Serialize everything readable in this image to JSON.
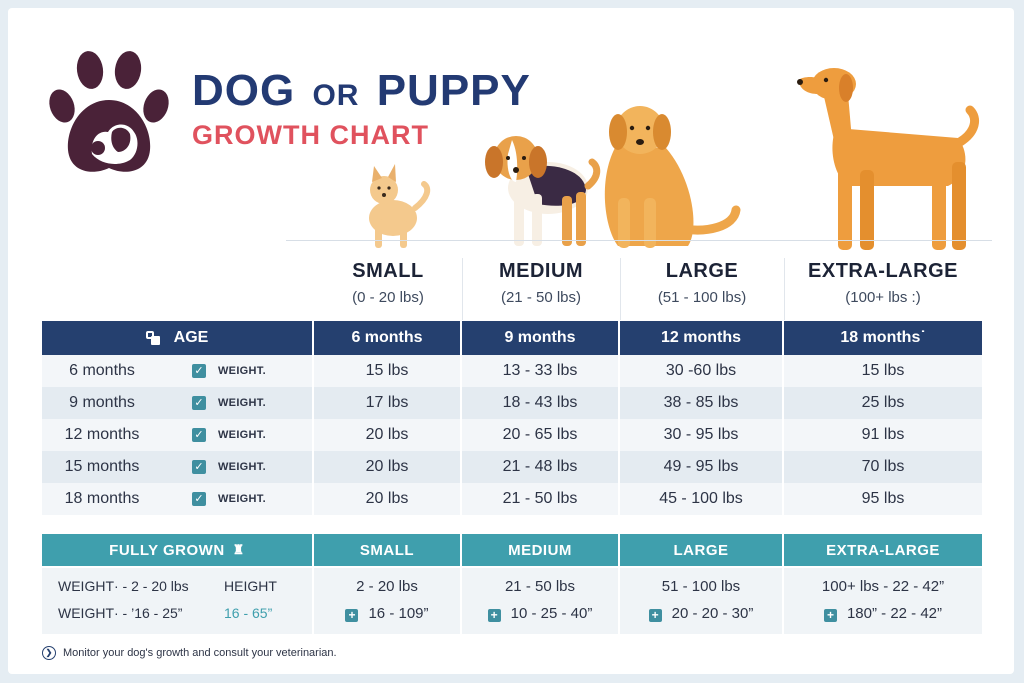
{
  "title": {
    "dog": "DOG",
    "or": "OR",
    "puppy": "PUPPY",
    "subtitle": "GROWTH CHART"
  },
  "sizes": [
    {
      "name": "SMALL",
      "range": "(0 - 20 lbs)"
    },
    {
      "name": "MEDIUM",
      "range": "(21 - 50 lbs)"
    },
    {
      "name": "LARGE",
      "range": "(51 - 100 lbs)"
    },
    {
      "name": "EXTRA-LARGE",
      "range": "(100+ lbs :)"
    }
  ],
  "age_table": {
    "header": {
      "label": "AGE",
      "icon": "age-icon",
      "cols": [
        "6 months",
        "9 months",
        "12 months",
        "18 months˙"
      ]
    },
    "weight_label": "WEIGHT.",
    "rows": [
      {
        "age": "6 months",
        "values": [
          "15 lbs",
          "13 - 33 lbs",
          "30 -60 lbs",
          "15 lbs"
        ]
      },
      {
        "age": "9 months",
        "values": [
          "17 lbs",
          "18 - 43 lbs",
          "38 - 85 lbs",
          "25 lbs"
        ]
      },
      {
        "age": "12 months",
        "values": [
          "20 lbs",
          "20 - 65 lbs",
          "30 - 95 lbs",
          "91 lbs"
        ]
      },
      {
        "age": "15 months",
        "values": [
          "20 lbs",
          "21 - 48 lbs",
          "49 - 95 lbs",
          "70 lbs"
        ]
      },
      {
        "age": "18 months",
        "values": [
          "20 lbs",
          "21 - 50 lbs",
          "45 - 100 lbs",
          "95 lbs"
        ]
      }
    ]
  },
  "fully_grown": {
    "header": {
      "label": "FULLY GROWN",
      "icon": "trophy-icon",
      "cols": [
        "SMALL",
        "MEDIUM",
        "LARGE",
        "EXTRA-LARGE"
      ]
    },
    "left": {
      "weight1": "WEIGHT· - 2 - 20 lbs",
      "weight2": "WEIGHT· -  ’16 - 25”",
      "height_label": "HEIGHT",
      "height_value": "16 - 65”"
    },
    "cols": [
      {
        "weight": "2 - 20 lbs",
        "height": "16 - 109”"
      },
      {
        "weight": "21 - 50 lbs",
        "height": "10 - 25 - 40”"
      },
      {
        "weight": "51 - 100 lbs",
        "height": "20 - 20 - 30”"
      },
      {
        "weight": "100+ lbs - 22 - 42”",
        "height": "180” - 22 - 42”"
      }
    ]
  },
  "footer": "Monitor your dog's growth and consult your veterinarian.",
  "colors": {
    "navy": "#25406f",
    "title_navy": "#233a73",
    "coral": "#e0525e",
    "teal": "#3f9fad",
    "paw": "#4a2238",
    "dog_orange": "#ee9d3e"
  }
}
